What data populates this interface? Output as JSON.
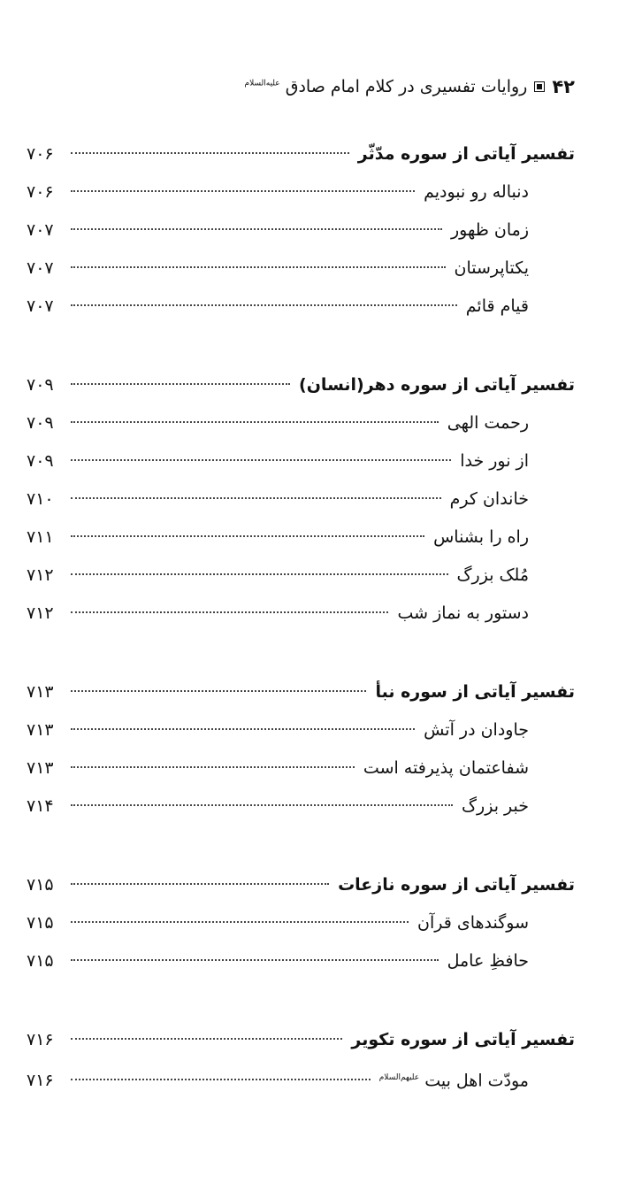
{
  "header": {
    "page_number": "۴۲",
    "book_title": "روایات تفسیری در کلام امام صادق",
    "honorific": "عليه‌السلام"
  },
  "sections": [
    {
      "title": "تفسیر آیاتی از سوره مدّثّر",
      "page": "۷۰۶",
      "items": [
        {
          "title": "دنباله رو نبودیم",
          "page": "۷۰۶"
        },
        {
          "title": "زمان ظهور",
          "page": "۷۰۷"
        },
        {
          "title": "یکتاپرستان",
          "page": "۷۰۷"
        },
        {
          "title": "قیام قائم",
          "page": "۷۰۷"
        }
      ]
    },
    {
      "title": "تفسیر آیاتی از سوره دهر(انسان)",
      "page": "۷۰۹",
      "items": [
        {
          "title": "رحمت الهی",
          "page": "۷۰۹"
        },
        {
          "title": "از نور خدا",
          "page": "۷۰۹"
        },
        {
          "title": "خاندان کرم",
          "page": "۷۱۰"
        },
        {
          "title": "راه را بشناس",
          "page": "۷۱۱"
        },
        {
          "title": "مُلک بزرگ",
          "page": "۷۱۲"
        },
        {
          "title": "دستور به نماز شب",
          "page": "۷۱۲"
        }
      ]
    },
    {
      "title": "تفسیر آیاتی از سوره نبأ",
      "page": "۷۱۳",
      "items": [
        {
          "title": "جاودان در آتش",
          "page": "۷۱۳"
        },
        {
          "title": "شفاعتمان پذیرفته است",
          "page": "۷۱۳"
        },
        {
          "title": "خبر بزرگ",
          "page": "۷۱۴"
        }
      ]
    },
    {
      "title": "تفسیر آیاتی از سوره نازعات",
      "page": "۷۱۵",
      "items": [
        {
          "title": "سوگندهای قرآن",
          "page": "۷۱۵"
        },
        {
          "title": "حافظِ عامل",
          "page": "۷۱۵"
        }
      ]
    },
    {
      "title": "تفسیر آیاتی از سوره تکویر",
      "page": "۷۱۶",
      "items": [
        {
          "title": "مودّت اهل بیت",
          "page": "۷۱۶",
          "honorific": "عليهم‌السلام"
        }
      ]
    }
  ]
}
